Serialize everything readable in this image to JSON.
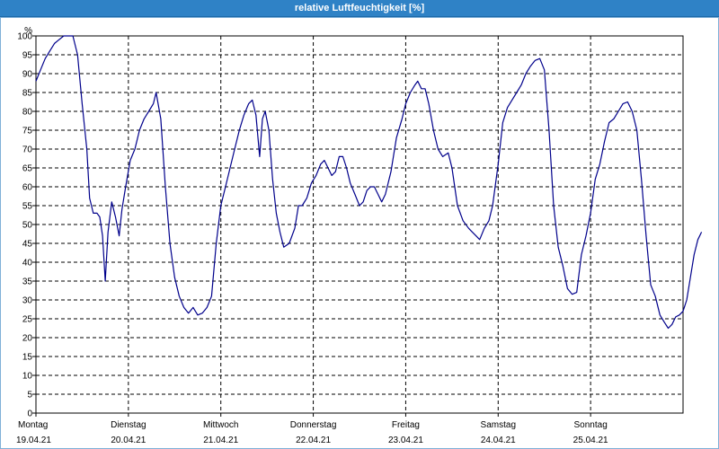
{
  "window": {
    "title": "relative Luftfeuchtigkeit [%]"
  },
  "chart_data": {
    "type": "line",
    "title": "relative Luftfeuchtigkeit [%]",
    "ylabel": "%",
    "xlabel": "",
    "ylim": [
      0,
      100
    ],
    "yticks": [
      0,
      5,
      10,
      15,
      20,
      25,
      30,
      35,
      40,
      45,
      50,
      55,
      60,
      65,
      70,
      75,
      80,
      85,
      90,
      95,
      100
    ],
    "xlim": [
      0,
      7
    ],
    "xticks": [
      {
        "day": "Montag",
        "date": "19.04.21"
      },
      {
        "day": "Dienstag",
        "date": "20.04.21"
      },
      {
        "day": "Mittwoch",
        "date": "21.04.21"
      },
      {
        "day": "Donnerstag",
        "date": "22.04.21"
      },
      {
        "day": "Freitag",
        "date": "23.04.21"
      },
      {
        "day": "Samstag",
        "date": "24.04.21"
      },
      {
        "day": "Sonntag",
        "date": "25.04.21"
      }
    ],
    "grid": true,
    "series": [
      {
        "color": "#00008b",
        "points": [
          [
            0.0,
            88
          ],
          [
            0.05,
            91
          ],
          [
            0.1,
            94
          ],
          [
            0.15,
            96
          ],
          [
            0.2,
            98
          ],
          [
            0.25,
            99
          ],
          [
            0.3,
            100
          ],
          [
            0.35,
            100
          ],
          [
            0.4,
            100
          ],
          [
            0.45,
            95
          ],
          [
            0.5,
            82
          ],
          [
            0.55,
            70
          ],
          [
            0.58,
            57
          ],
          [
            0.62,
            53
          ],
          [
            0.66,
            53
          ],
          [
            0.69,
            52
          ],
          [
            0.72,
            47
          ],
          [
            0.75,
            35
          ],
          [
            0.78,
            48
          ],
          [
            0.82,
            56
          ],
          [
            0.86,
            52
          ],
          [
            0.9,
            47
          ],
          [
            0.93,
            54
          ],
          [
            0.97,
            60
          ],
          [
            1.02,
            67
          ],
          [
            1.07,
            70
          ],
          [
            1.12,
            75
          ],
          [
            1.17,
            78
          ],
          [
            1.22,
            80
          ],
          [
            1.27,
            82
          ],
          [
            1.3,
            85
          ],
          [
            1.35,
            78
          ],
          [
            1.4,
            60
          ],
          [
            1.45,
            45
          ],
          [
            1.5,
            36
          ],
          [
            1.55,
            31
          ],
          [
            1.6,
            28
          ],
          [
            1.65,
            26.5
          ],
          [
            1.7,
            28
          ],
          [
            1.75,
            26
          ],
          [
            1.8,
            26.5
          ],
          [
            1.85,
            28
          ],
          [
            1.9,
            31
          ],
          [
            1.95,
            45
          ],
          [
            2.0,
            55
          ],
          [
            2.05,
            60
          ],
          [
            2.1,
            65
          ],
          [
            2.15,
            70
          ],
          [
            2.2,
            75
          ],
          [
            2.25,
            79
          ],
          [
            2.3,
            82
          ],
          [
            2.34,
            83
          ],
          [
            2.38,
            79
          ],
          [
            2.42,
            68
          ],
          [
            2.45,
            78
          ],
          [
            2.48,
            80
          ],
          [
            2.52,
            75
          ],
          [
            2.56,
            62
          ],
          [
            2.6,
            53
          ],
          [
            2.64,
            48
          ],
          [
            2.68,
            44
          ],
          [
            2.74,
            45
          ],
          [
            2.8,
            49
          ],
          [
            2.84,
            55
          ],
          [
            2.88,
            55
          ],
          [
            2.93,
            57
          ],
          [
            2.98,
            61
          ],
          [
            3.03,
            63
          ],
          [
            3.08,
            66
          ],
          [
            3.12,
            67
          ],
          [
            3.16,
            65
          ],
          [
            3.2,
            63
          ],
          [
            3.24,
            64
          ],
          [
            3.28,
            68
          ],
          [
            3.32,
            68
          ],
          [
            3.36,
            65
          ],
          [
            3.4,
            61
          ],
          [
            3.45,
            58
          ],
          [
            3.5,
            55
          ],
          [
            3.54,
            56
          ],
          [
            3.58,
            59
          ],
          [
            3.62,
            60
          ],
          [
            3.66,
            60
          ],
          [
            3.7,
            58
          ],
          [
            3.74,
            56
          ],
          [
            3.78,
            58
          ],
          [
            3.84,
            64
          ],
          [
            3.9,
            73
          ],
          [
            3.96,
            78
          ],
          [
            4.0,
            82
          ],
          [
            4.05,
            85
          ],
          [
            4.1,
            87
          ],
          [
            4.13,
            88
          ],
          [
            4.17,
            86
          ],
          [
            4.21,
            86
          ],
          [
            4.25,
            82
          ],
          [
            4.3,
            75
          ],
          [
            4.35,
            70
          ],
          [
            4.4,
            68
          ],
          [
            4.46,
            69
          ],
          [
            4.5,
            65
          ],
          [
            4.56,
            55
          ],
          [
            4.62,
            51
          ],
          [
            4.68,
            49
          ],
          [
            4.72,
            48
          ],
          [
            4.76,
            47
          ],
          [
            4.8,
            46
          ],
          [
            4.85,
            49
          ],
          [
            4.9,
            51
          ],
          [
            4.94,
            55
          ],
          [
            5.0,
            66
          ],
          [
            5.05,
            77
          ],
          [
            5.1,
            81
          ],
          [
            5.15,
            83
          ],
          [
            5.2,
            85
          ],
          [
            5.25,
            87
          ],
          [
            5.3,
            90
          ],
          [
            5.35,
            92
          ],
          [
            5.4,
            93.5
          ],
          [
            5.45,
            94
          ],
          [
            5.5,
            91
          ],
          [
            5.55,
            75
          ],
          [
            5.6,
            55
          ],
          [
            5.65,
            44
          ],
          [
            5.7,
            39
          ],
          [
            5.75,
            33
          ],
          [
            5.8,
            31.5
          ],
          [
            5.85,
            32
          ],
          [
            5.9,
            42
          ],
          [
            5.95,
            47
          ],
          [
            6.0,
            53
          ],
          [
            6.05,
            62
          ],
          [
            6.1,
            66
          ],
          [
            6.15,
            72
          ],
          [
            6.2,
            77
          ],
          [
            6.25,
            78
          ],
          [
            6.3,
            80
          ],
          [
            6.35,
            82
          ],
          [
            6.4,
            82.5
          ],
          [
            6.45,
            80
          ],
          [
            6.5,
            75
          ],
          [
            6.55,
            62
          ],
          [
            6.6,
            47
          ],
          [
            6.65,
            34
          ],
          [
            6.7,
            31
          ],
          [
            6.75,
            26
          ],
          [
            6.8,
            24
          ],
          [
            6.84,
            22.5
          ],
          [
            6.88,
            23.5
          ],
          [
            6.92,
            25.5
          ],
          [
            6.96,
            26
          ],
          [
            7.0,
            27
          ],
          [
            7.04,
            30
          ],
          [
            7.08,
            36
          ],
          [
            7.12,
            42
          ],
          [
            7.16,
            46
          ],
          [
            7.2,
            48
          ]
        ]
      }
    ]
  }
}
